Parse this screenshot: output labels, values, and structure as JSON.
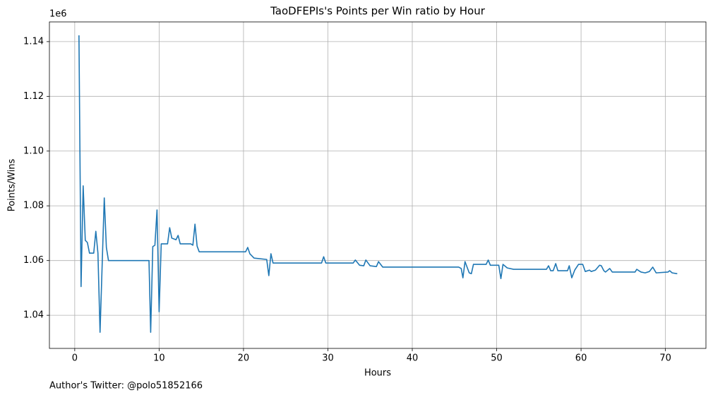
{
  "chart_data": {
    "type": "line",
    "title": "TaoDFEPIs's Points per Win ratio by Hour",
    "xlabel": "Hours",
    "ylabel": "Points/Wins",
    "y_offset_label": "1e6",
    "footer": "Author's Twitter: @polo51852166",
    "color": "#1f77b4",
    "grid": true,
    "xlim": [
      -3.0,
      74.8
    ],
    "ylim": [
      1027900,
      1147200
    ],
    "xticks": [
      0,
      10,
      20,
      30,
      40,
      50,
      60,
      70
    ],
    "yticks": [
      {
        "value": 1040000,
        "label": "1.04"
      },
      {
        "value": 1060000,
        "label": "1.06"
      },
      {
        "value": 1080000,
        "label": "1.08"
      },
      {
        "value": 1100000,
        "label": "1.10"
      },
      {
        "value": 1120000,
        "label": "1.12"
      },
      {
        "value": 1140000,
        "label": "1.14"
      }
    ],
    "x": [
      0.5,
      0.75,
      1.0,
      1.25,
      1.5,
      1.75,
      2.25,
      2.5,
      2.75,
      3.0,
      3.5,
      3.75,
      4.0,
      8.8,
      9.0,
      9.25,
      9.5,
      9.75,
      10.0,
      10.25,
      11.0,
      11.25,
      11.5,
      12.0,
      12.25,
      12.5,
      13.75,
      14.0,
      14.25,
      14.5,
      14.75,
      20.25,
      20.5,
      20.75,
      21.25,
      22.75,
      23.0,
      23.25,
      23.5,
      29.25,
      29.5,
      29.75,
      33.0,
      33.25,
      33.75,
      34.25,
      34.5,
      35.0,
      35.75,
      36.0,
      36.5,
      45.5,
      45.8,
      46.0,
      46.25,
      46.75,
      47.0,
      47.25,
      48.75,
      49.0,
      49.25,
      50.25,
      50.5,
      50.75,
      51.25,
      52.0,
      55.9,
      56.15,
      56.4,
      56.7,
      57.0,
      57.25,
      58.4,
      58.6,
      58.9,
      59.25,
      59.7,
      60.2,
      60.5,
      61.0,
      61.2,
      61.7,
      62.2,
      62.4,
      62.7,
      62.9,
      63.4,
      63.7,
      66.4,
      66.6,
      67.1,
      67.6,
      68.1,
      68.5,
      68.9,
      70.3,
      70.5,
      70.8,
      71.4
    ],
    "values": [
      1142300,
      1050500,
      1087300,
      1067400,
      1066600,
      1062700,
      1062700,
      1070700,
      1062700,
      1033800,
      1082900,
      1064800,
      1060000,
      1060000,
      1033800,
      1065100,
      1065600,
      1078500,
      1041300,
      1066100,
      1066100,
      1072000,
      1068200,
      1067600,
      1069200,
      1066100,
      1066100,
      1065600,
      1073300,
      1065300,
      1063200,
      1063200,
      1064800,
      1062500,
      1060900,
      1060400,
      1054500,
      1062500,
      1059100,
      1059100,
      1061400,
      1059100,
      1059100,
      1060200,
      1058300,
      1058100,
      1060200,
      1058100,
      1057800,
      1059600,
      1057600,
      1057600,
      1057100,
      1053700,
      1059600,
      1055500,
      1055200,
      1058600,
      1058600,
      1060200,
      1058300,
      1058300,
      1053400,
      1058600,
      1057300,
      1056800,
      1056800,
      1058100,
      1056300,
      1056300,
      1058900,
      1056300,
      1056300,
      1058100,
      1053700,
      1056500,
      1058600,
      1058600,
      1056000,
      1056500,
      1056000,
      1056500,
      1058300,
      1058100,
      1056300,
      1055800,
      1057100,
      1055800,
      1055800,
      1056800,
      1055800,
      1055500,
      1056000,
      1057600,
      1055500,
      1055800,
      1056300,
      1055500,
      1055200
    ]
  }
}
